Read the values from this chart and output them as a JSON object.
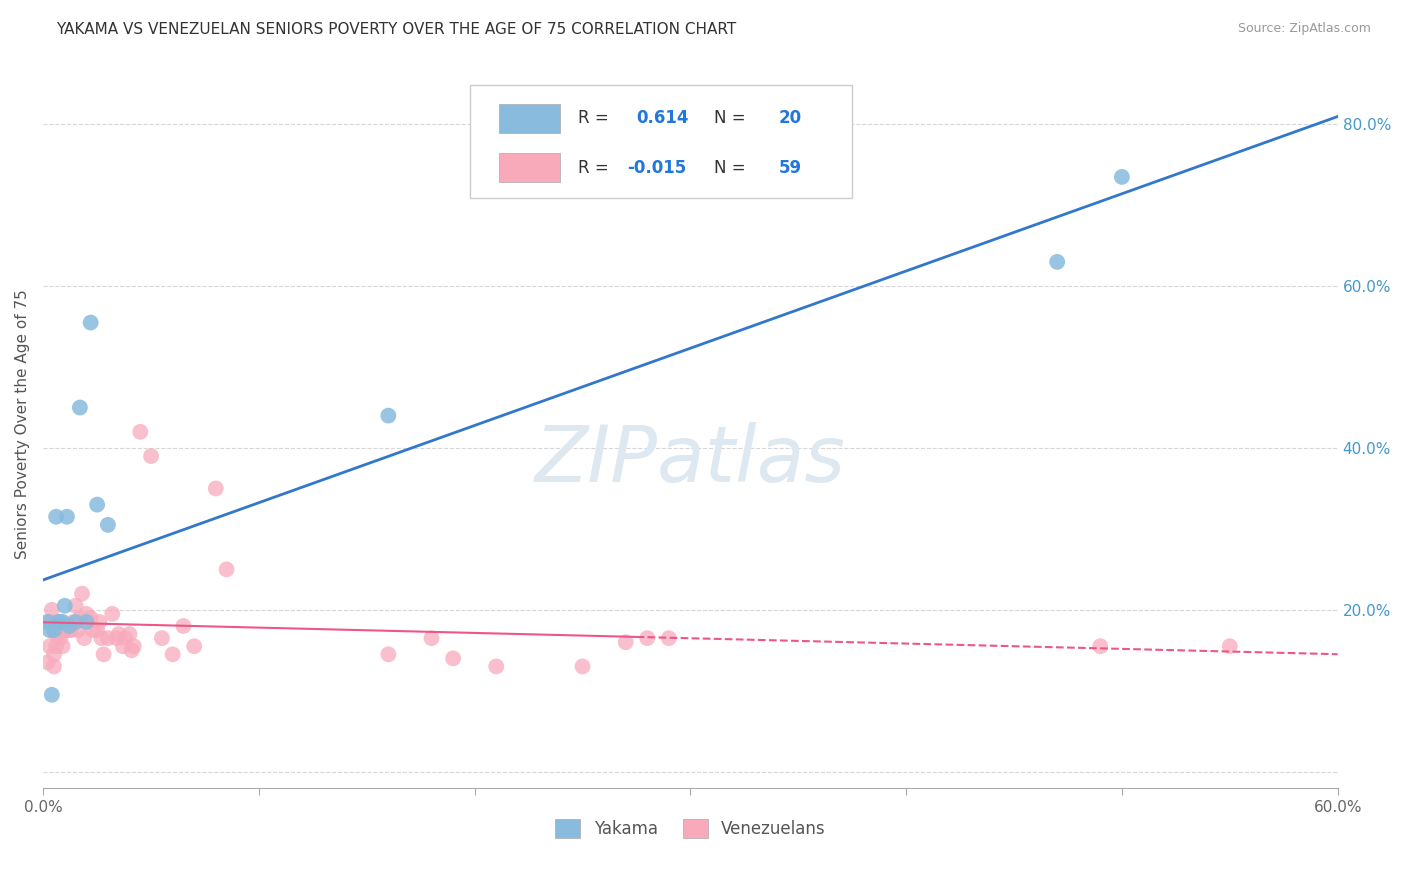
{
  "title": "YAKAMA VS VENEZUELAN SENIORS POVERTY OVER THE AGE OF 75 CORRELATION CHART",
  "source": "Source: ZipAtlas.com",
  "ylabel": "Seniors Poverty Over the Age of 75",
  "xlim": [
    0.0,
    0.6
  ],
  "ylim": [
    -0.02,
    0.88
  ],
  "yticks": [
    0.0,
    0.2,
    0.4,
    0.6,
    0.8
  ],
  "ytick_labels": [
    "",
    "20.0%",
    "40.0%",
    "60.0%",
    "80.0%"
  ],
  "xtick_labels": [
    "0.0%",
    "",
    "",
    "",
    "",
    "",
    "60.0%"
  ],
  "legend_bottom_label1": "Yakama",
  "legend_bottom_label2": "Venezuelans",
  "yakama_color": "#88bbdd",
  "venezuelan_color": "#f8aabb",
  "yakama_line_color": "#3377cc",
  "venezuelan_line_color": "#ee5588",
  "watermark": "ZIPatlas",
  "watermark_color": "#dde8f0",
  "grid_color": "#cccccc",
  "background_color": "#ffffff",
  "r1": 0.614,
  "n1": 20,
  "r2": -0.015,
  "n2": 59,
  "yakama_x": [
    0.002,
    0.003,
    0.004,
    0.005,
    0.006,
    0.007,
    0.008,
    0.009,
    0.01,
    0.011,
    0.012,
    0.015,
    0.017,
    0.02,
    0.022,
    0.025,
    0.03,
    0.16,
    0.47,
    0.5
  ],
  "yakama_y": [
    0.185,
    0.175,
    0.095,
    0.175,
    0.315,
    0.185,
    0.185,
    0.185,
    0.205,
    0.315,
    0.18,
    0.185,
    0.45,
    0.185,
    0.555,
    0.33,
    0.305,
    0.44,
    0.63,
    0.735
  ],
  "venezuelan_x": [
    0.002,
    0.003,
    0.003,
    0.004,
    0.004,
    0.005,
    0.005,
    0.006,
    0.006,
    0.007,
    0.007,
    0.008,
    0.008,
    0.009,
    0.009,
    0.01,
    0.011,
    0.012,
    0.013,
    0.014,
    0.015,
    0.016,
    0.017,
    0.018,
    0.019,
    0.02,
    0.022,
    0.023,
    0.025,
    0.026,
    0.027,
    0.028,
    0.03,
    0.032,
    0.034,
    0.035,
    0.037,
    0.038,
    0.04,
    0.041,
    0.042,
    0.045,
    0.05,
    0.055,
    0.06,
    0.065,
    0.07,
    0.08,
    0.085,
    0.16,
    0.18,
    0.19,
    0.21,
    0.25,
    0.27,
    0.28,
    0.29,
    0.49,
    0.55
  ],
  "venezuelan_y": [
    0.135,
    0.155,
    0.185,
    0.185,
    0.2,
    0.13,
    0.145,
    0.155,
    0.17,
    0.17,
    0.185,
    0.165,
    0.18,
    0.155,
    0.175,
    0.175,
    0.18,
    0.175,
    0.175,
    0.185,
    0.205,
    0.175,
    0.19,
    0.22,
    0.165,
    0.195,
    0.19,
    0.175,
    0.175,
    0.185,
    0.165,
    0.145,
    0.165,
    0.195,
    0.165,
    0.17,
    0.155,
    0.165,
    0.17,
    0.15,
    0.155,
    0.42,
    0.39,
    0.165,
    0.145,
    0.18,
    0.155,
    0.35,
    0.25,
    0.145,
    0.165,
    0.14,
    0.13,
    0.13,
    0.16,
    0.165,
    0.165,
    0.155,
    0.155
  ]
}
